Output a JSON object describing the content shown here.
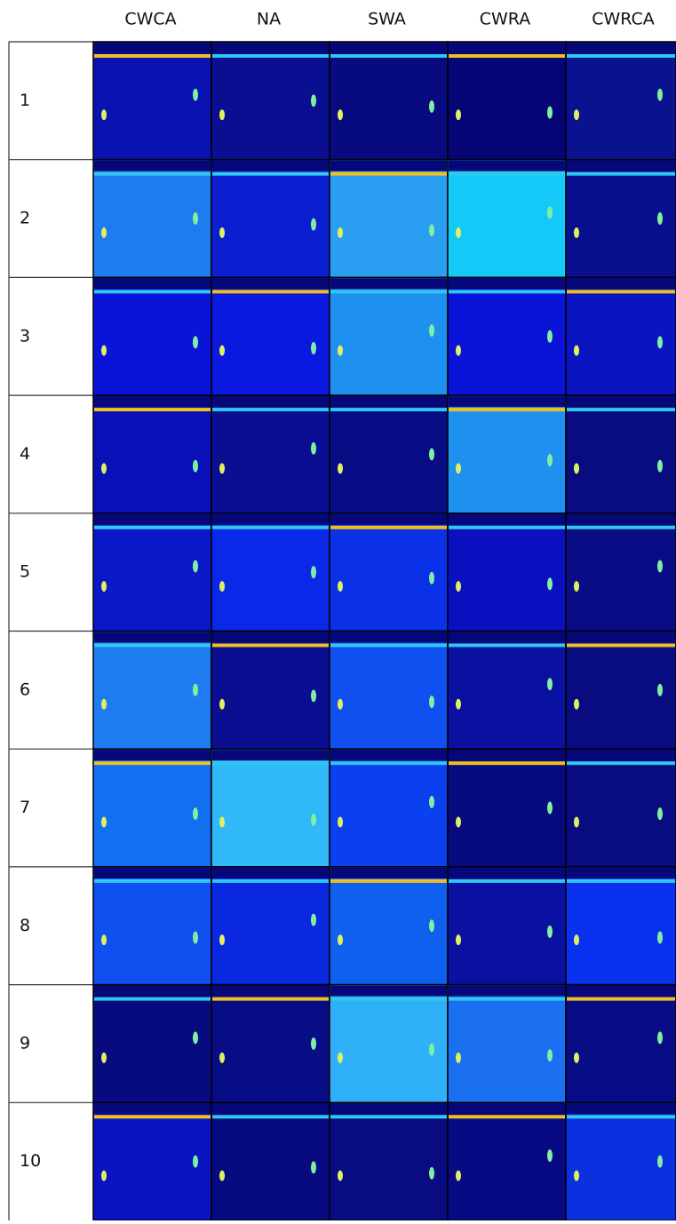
{
  "columns": [
    "CWCA",
    "NA",
    "SWA",
    "CWRA",
    "CWRCA"
  ],
  "rows": [
    "1",
    "2",
    "3",
    "4",
    "5",
    "6",
    "7",
    "8",
    "9",
    "10"
  ]
}
